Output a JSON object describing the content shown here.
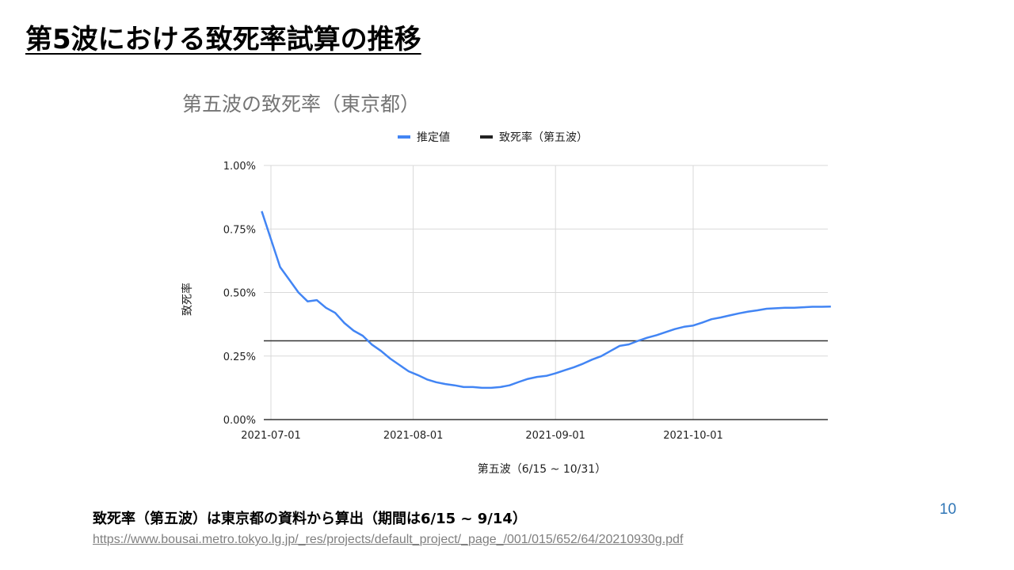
{
  "slide": {
    "title": "第5波における致死率試算の推移",
    "note": "致死率（第五波）は東京都の資料から算出（期間は6/15 ~ 9/14）",
    "source_url": "https://www.bousai.metro.tokyo.lg.jp/_res/projects/default_project/_page_/001/015/652/64/20210930g.pdf",
    "page_number": "10"
  },
  "colors": {
    "estimate_series": "#4285f4",
    "reference_line": "#333333",
    "grid": "#d9d9d9",
    "link": "#7f7f7f",
    "page_number": "#2e75b6"
  },
  "chart_data": {
    "type": "line",
    "title": "第五波の致死率（東京都）",
    "xlabel": "第五波（6/15 ~ 10/31）",
    "ylabel": "致死率",
    "legend_position": "top",
    "grid": true,
    "y_ticks": [
      "1.00%",
      "0.75%",
      "0.50%",
      "0.25%",
      "0.00%"
    ],
    "x_ticks": [
      "2021-07-01",
      "2021-08-01",
      "2021-09-01",
      "2021-10-01"
    ],
    "ylim": [
      0,
      1.0
    ],
    "x_range": [
      "2021-06-30",
      "2021-10-31"
    ],
    "series": [
      {
        "name": "推定値",
        "x": [
          "2021-06-29",
          "2021-07-01",
          "2021-07-03",
          "2021-07-05",
          "2021-07-07",
          "2021-07-09",
          "2021-07-11",
          "2021-07-13",
          "2021-07-15",
          "2021-07-17",
          "2021-07-19",
          "2021-07-21",
          "2021-07-23",
          "2021-07-25",
          "2021-07-27",
          "2021-07-29",
          "2021-07-31",
          "2021-08-02",
          "2021-08-04",
          "2021-08-06",
          "2021-08-08",
          "2021-08-10",
          "2021-08-12",
          "2021-08-14",
          "2021-08-16",
          "2021-08-18",
          "2021-08-20",
          "2021-08-22",
          "2021-08-24",
          "2021-08-26",
          "2021-08-28",
          "2021-08-30",
          "2021-09-01",
          "2021-09-03",
          "2021-09-05",
          "2021-09-07",
          "2021-09-09",
          "2021-09-11",
          "2021-09-13",
          "2021-09-15",
          "2021-09-17",
          "2021-09-19",
          "2021-09-21",
          "2021-09-23",
          "2021-09-25",
          "2021-09-27",
          "2021-09-29",
          "2021-10-01",
          "2021-10-03",
          "2021-10-05",
          "2021-10-07",
          "2021-10-09",
          "2021-10-11",
          "2021-10-13",
          "2021-10-15",
          "2021-10-17",
          "2021-10-19",
          "2021-10-21",
          "2021-10-23",
          "2021-10-25",
          "2021-10-27",
          "2021-10-29",
          "2021-10-31"
        ],
        "values": [
          0.82,
          0.71,
          0.6,
          0.55,
          0.5,
          0.465,
          0.47,
          0.44,
          0.42,
          0.38,
          0.35,
          0.33,
          0.295,
          0.27,
          0.24,
          0.215,
          0.19,
          0.175,
          0.158,
          0.147,
          0.14,
          0.135,
          0.128,
          0.128,
          0.125,
          0.125,
          0.128,
          0.135,
          0.148,
          0.16,
          0.168,
          0.172,
          0.182,
          0.194,
          0.206,
          0.22,
          0.236,
          0.25,
          0.27,
          0.29,
          0.296,
          0.31,
          0.322,
          0.332,
          0.344,
          0.356,
          0.365,
          0.37,
          0.382,
          0.395,
          0.402,
          0.41,
          0.418,
          0.425,
          0.43,
          0.436,
          0.438,
          0.44,
          0.44,
          0.442,
          0.444,
          0.444,
          0.445
        ]
      },
      {
        "name": "致死率（第五波）",
        "constant": 0.31
      }
    ]
  }
}
